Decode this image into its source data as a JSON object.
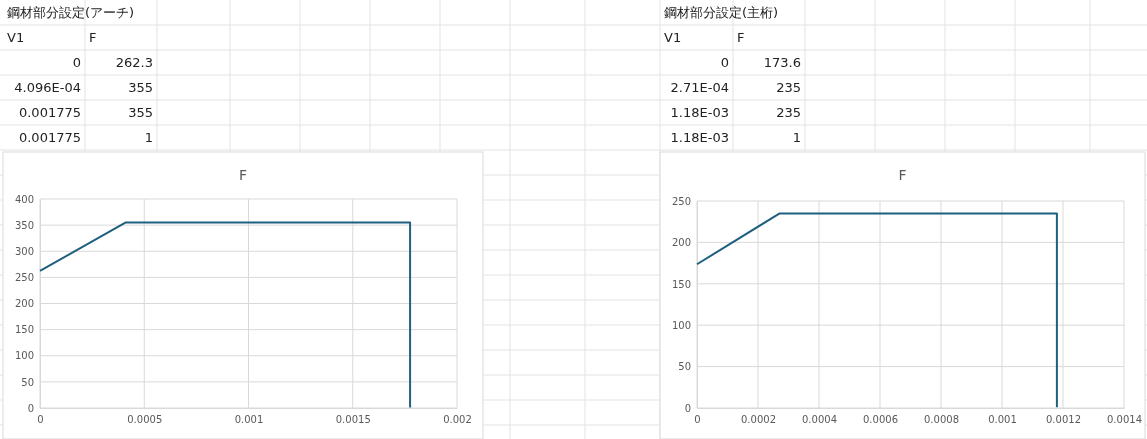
{
  "chart_data": [
    {
      "type": "line",
      "title": "F",
      "annotations": [
        "鋼材部分設定(アーチ)",
        "V1",
        "F",
        "0",
        "262.3",
        "4.096E-04",
        "355",
        "0.001775",
        "355",
        "0.001775",
        "1"
      ],
      "x": [
        0,
        0.0004096,
        0.001775,
        0.001775
      ],
      "series": [
        {
          "color": "#1f5f7f",
          "values": [
            262.3,
            355,
            355,
            1
          ]
        }
      ],
      "xlim": [
        0,
        0.002
      ],
      "xticks": [
        0,
        0.0005,
        0.001,
        0.0015,
        0.002
      ],
      "ylim": [
        0,
        400
      ],
      "yticks": [
        0,
        50,
        100,
        150,
        200,
        250,
        300,
        350,
        400
      ],
      "grid": true,
      "marker": "none",
      "line_style": "solid"
    },
    {
      "type": "line",
      "title": "F",
      "annotations": [
        "鋼材部分設定(主桁)",
        "V1",
        "F",
        "0",
        "173.6",
        "2.71E-04",
        "235",
        "1.18E-03",
        "235",
        "1.18E-03",
        "1"
      ],
      "x": [
        0,
        0.000271,
        0.00118,
        0.00118
      ],
      "series": [
        {
          "color": "#1f5f7f",
          "values": [
            173.6,
            235,
            235,
            1
          ]
        }
      ],
      "xlim": [
        0,
        0.0014
      ],
      "xticks": [
        0,
        0.0002,
        0.0004,
        0.0006,
        0.0008,
        0.001,
        0.0012,
        0.0014
      ],
      "ylim": [
        0,
        250
      ],
      "yticks": [
        0,
        50,
        100,
        150,
        200,
        250
      ],
      "grid": true,
      "marker": "none",
      "line_style": "solid"
    }
  ]
}
